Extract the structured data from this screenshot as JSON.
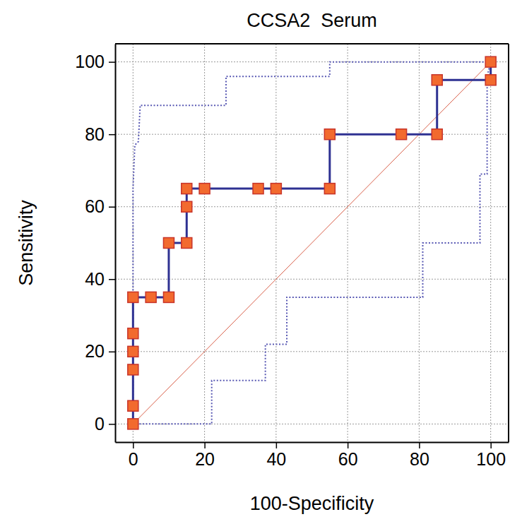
{
  "chart_data": {
    "type": "line",
    "title": "CCSA2  Serum",
    "x_label": "100-Specificity",
    "y_label": "Sensitivity",
    "xlim": [
      -5,
      105
    ],
    "ylim": [
      -5,
      105
    ],
    "xticks": [
      0,
      20,
      40,
      60,
      80,
      100
    ],
    "yticks": [
      0,
      20,
      40,
      60,
      80,
      100
    ],
    "grid": true,
    "series": [
      {
        "x": [
          0,
          100
        ],
        "values": [
          0,
          100
        ],
        "color": "#d9604a",
        "line_style": "solid"
      },
      {
        "x": [
          0,
          0,
          0.5,
          1.5,
          2,
          26,
          26,
          55,
          55,
          100
        ],
        "values": [
          0,
          65,
          77,
          78,
          88,
          88,
          96,
          96,
          100,
          100
        ],
        "color": "#5a5ab4",
        "line_style": "dotted"
      },
      {
        "x": [
          0,
          22,
          22,
          37,
          37,
          43,
          43,
          81,
          81,
          97,
          97,
          99,
          99,
          100
        ],
        "values": [
          0,
          0,
          12,
          12,
          22,
          22,
          35,
          35,
          50,
          50,
          69,
          69,
          96,
          100
        ],
        "color": "#5a5ab4",
        "line_style": "dotted"
      },
      {
        "x": [
          0,
          0,
          0,
          0,
          0,
          0,
          5,
          10,
          10,
          15,
          15,
          15,
          20,
          35,
          40,
          55,
          55,
          75,
          85,
          85,
          100,
          100
        ],
        "values": [
          0,
          5,
          15,
          20,
          25,
          35,
          35,
          35,
          50,
          50,
          60,
          65,
          65,
          65,
          65,
          65,
          80,
          80,
          80,
          95,
          95,
          100
        ],
        "color": "#2e3192",
        "marker": "square",
        "line_style": "solid"
      }
    ]
  }
}
